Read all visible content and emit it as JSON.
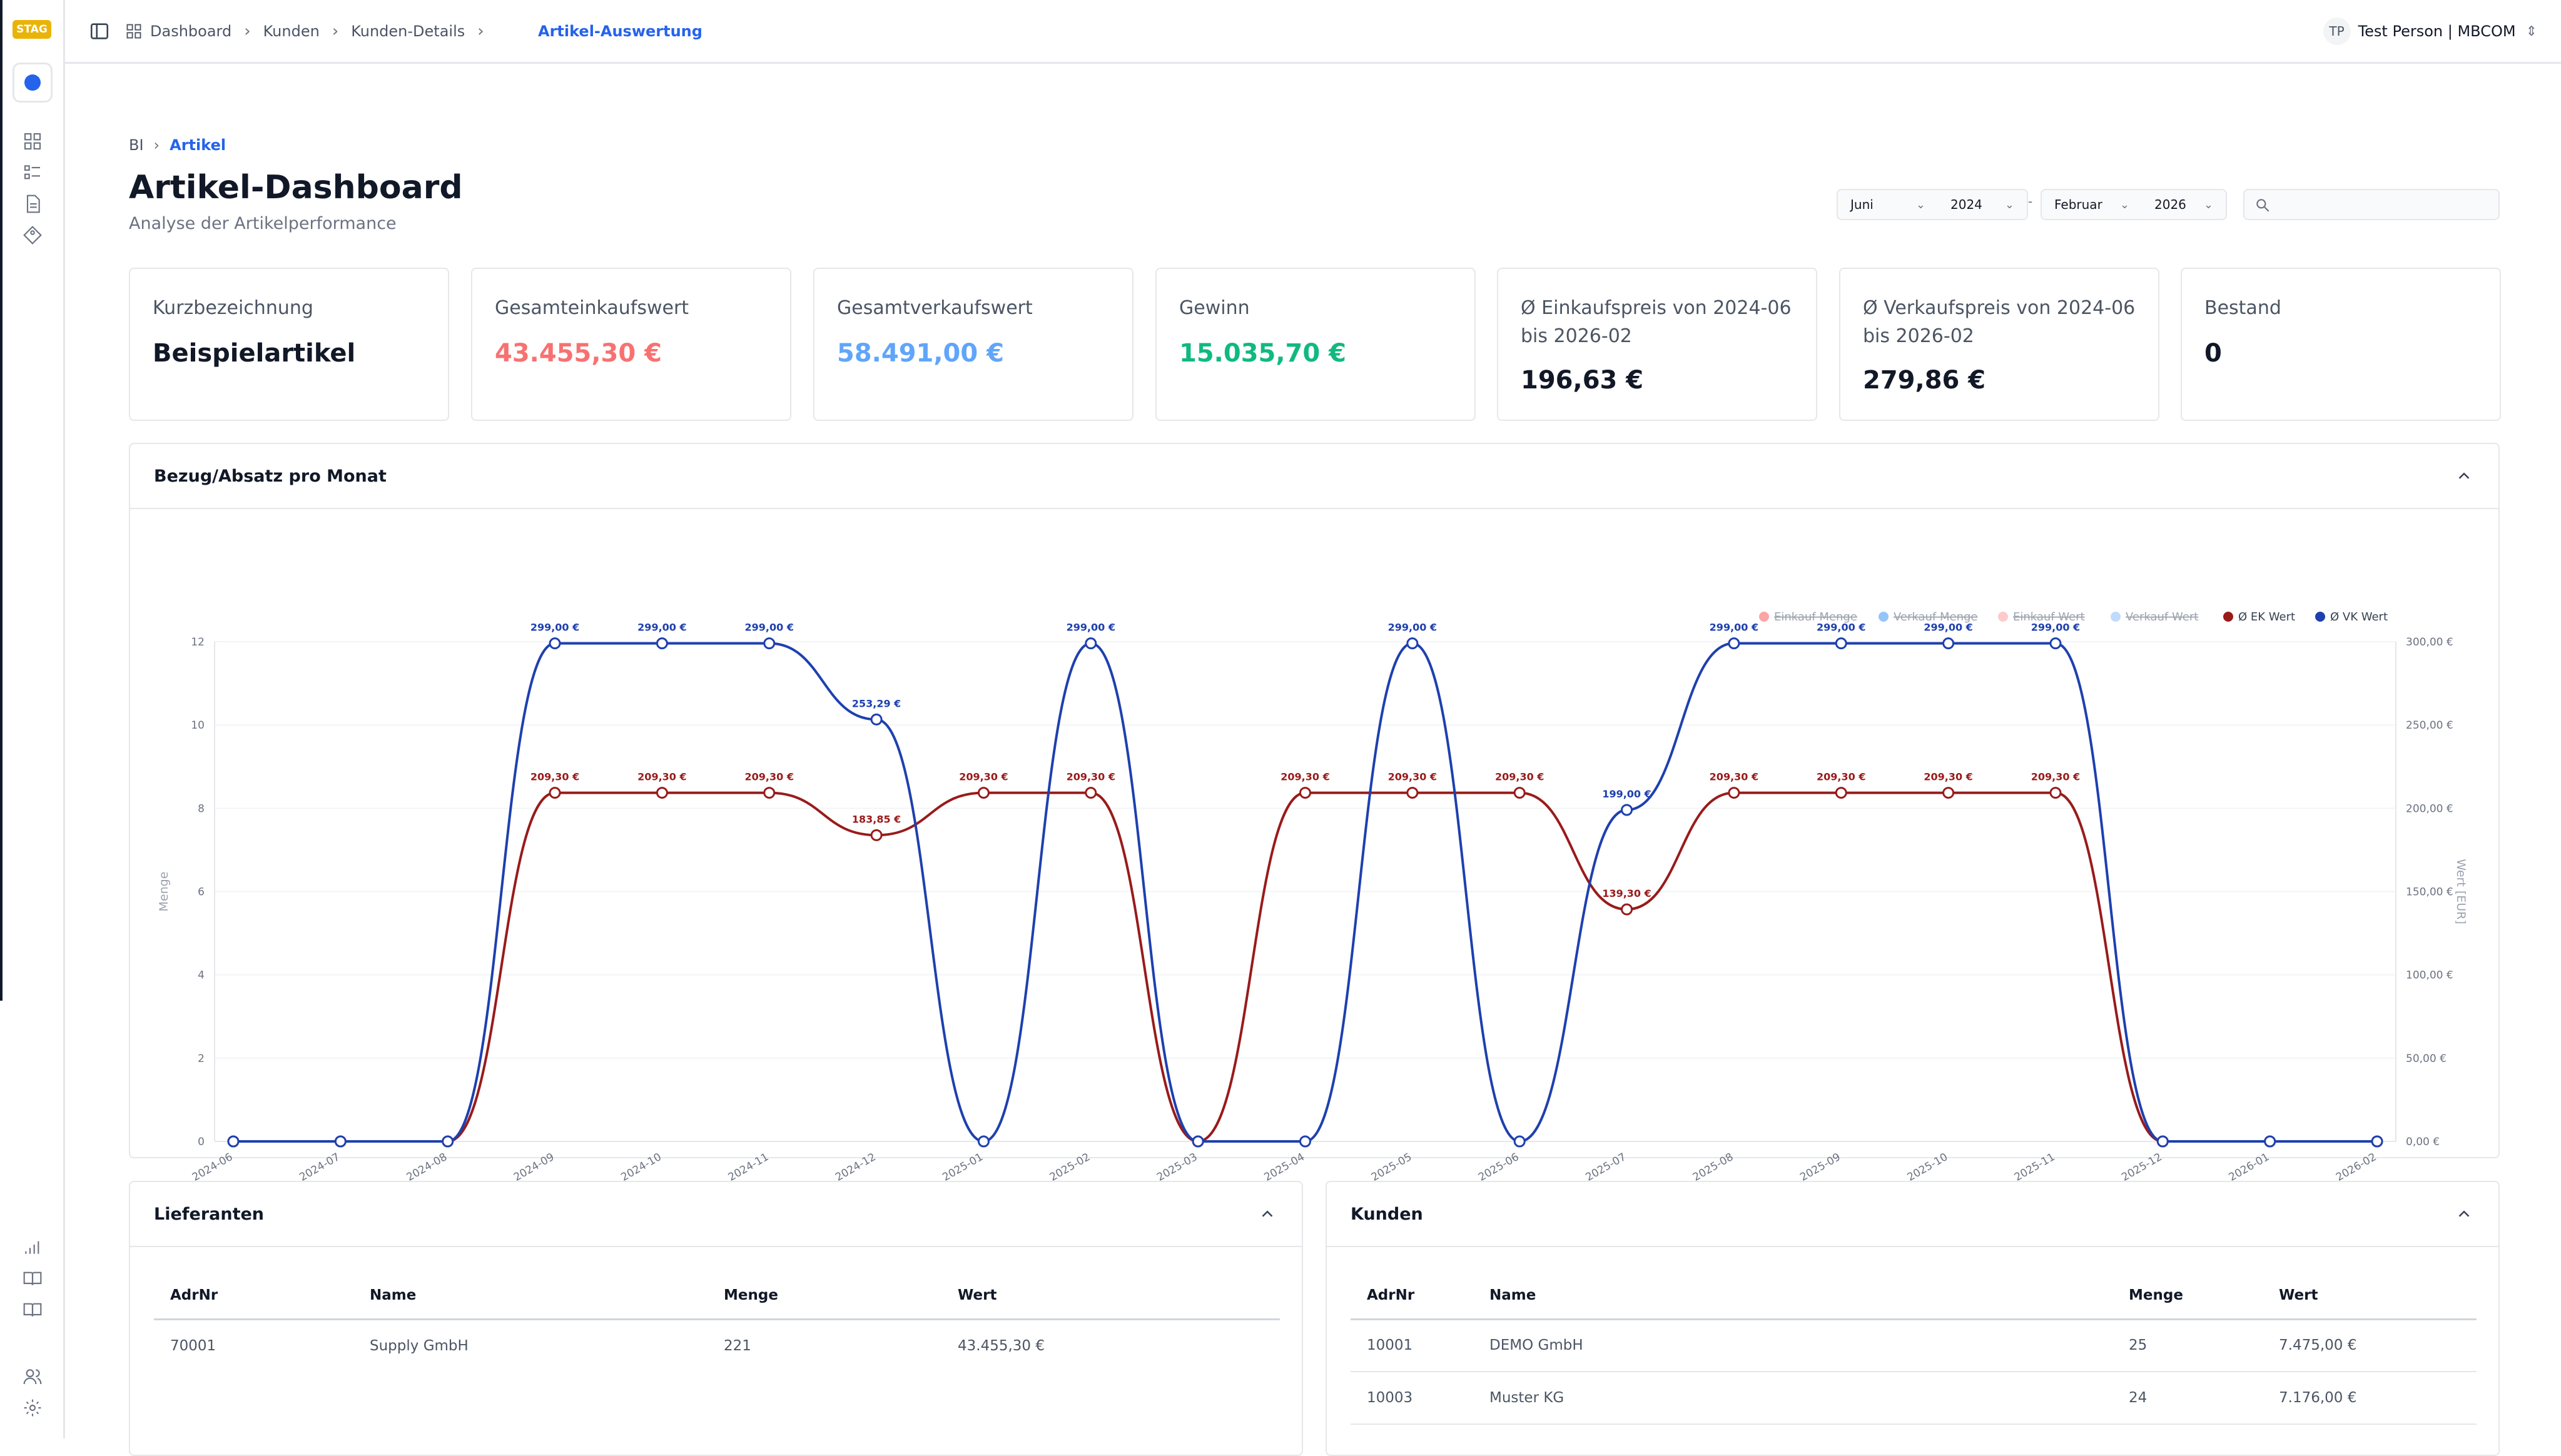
{
  "env_badge": "STAG",
  "topbar": {
    "breadcrumb": [
      "Dashboard",
      "Kunden",
      "Kunden-Details"
    ],
    "active": "Artikel-Auswertung",
    "user_initials": "TP",
    "user_name": "Test Person | MBCOM"
  },
  "page": {
    "crumb_root": "BI",
    "crumb_active": "Artikel",
    "title": "Artikel-Dashboard",
    "subtitle": "Analyse der Artikelperformance"
  },
  "filters": {
    "from_month": "Juni",
    "from_year": "2024",
    "dash": "-",
    "to_month": "Februar",
    "to_year": "2026",
    "search_placeholder": ""
  },
  "kpis": [
    {
      "label": "Kurzbezeichnung",
      "value": "Beispielartikel",
      "color": "#111827"
    },
    {
      "label": "Gesamteinkaufswert",
      "value": "43.455,30 €",
      "color": "#f87171"
    },
    {
      "label": "Gesamtverkaufswert",
      "value": "58.491,00 €",
      "color": "#60a5fa"
    },
    {
      "label": "Gewinn",
      "value": "15.035,70 €",
      "color": "#10b981"
    },
    {
      "label": "Ø Einkaufspreis von 2024-06 bis 2026-02",
      "value": "196,63 €",
      "color": "#111827"
    },
    {
      "label": "Ø Verkaufspreis von 2024-06 bis 2026-02",
      "value": "279,86 €",
      "color": "#111827"
    },
    {
      "label": "Bestand",
      "value": "0",
      "color": "#111827"
    }
  ],
  "chart_panel": {
    "title": "Bezug/Absatz pro Monat"
  },
  "chart_data": {
    "type": "line",
    "categories": [
      "2024-06",
      "2024-07",
      "2024-08",
      "2024-09",
      "2024-10",
      "2024-11",
      "2024-12",
      "2025-01",
      "2025-02",
      "2025-03",
      "2025-04",
      "2025-05",
      "2025-06",
      "2025-07",
      "2025-08",
      "2025-09",
      "2025-10",
      "2025-11",
      "2025-12",
      "2026-01",
      "2026-02"
    ],
    "ylabel": "Menge",
    "y2label": "Wert [EUR]",
    "ylim": [
      0,
      12
    ],
    "y_ticks": [
      "0",
      "2",
      "4",
      "6",
      "8",
      "10",
      "12"
    ],
    "y2lim": [
      0,
      300
    ],
    "y2_ticks": [
      "0,00 €",
      "50,00 €",
      "100,00 €",
      "150,00 €",
      "200,00 €",
      "250,00 €",
      "300,00 €"
    ],
    "legend_position": "top-right",
    "legend": [
      {
        "name": "Einkauf Menge",
        "color": "#fca5a5",
        "hidden": true
      },
      {
        "name": "Verkauf Menge",
        "color": "#93c5fd",
        "hidden": true
      },
      {
        "name": "Einkauf Wert",
        "color": "#fecaca",
        "hidden": true
      },
      {
        "name": "Verkauf Wert",
        "color": "#bfdbfe",
        "hidden": true
      },
      {
        "name": "Ø EK Wert",
        "color": "#991b1b",
        "hidden": false
      },
      {
        "name": "Ø VK Wert",
        "color": "#1e40af",
        "hidden": false
      }
    ],
    "series": [
      {
        "name": "Ø EK Wert",
        "color": "#991b1b",
        "values": [
          0,
          0,
          0,
          209.3,
          209.3,
          209.3,
          183.85,
          209.3,
          209.3,
          0,
          209.3,
          209.3,
          209.3,
          139.3,
          209.3,
          209.3,
          209.3,
          209.3,
          0,
          0,
          0
        ],
        "labels": [
          "",
          "",
          "",
          "209,30 €",
          "209,30 €",
          "209,30 €",
          "183,85 €",
          "209,30 €",
          "209,30 €",
          "",
          "209,30 €",
          "209,30 €",
          "209,30 €",
          "139,30 €",
          "209,30 €",
          "209,30 €",
          "209,30 €",
          "209,30 €",
          "",
          "",
          ""
        ]
      },
      {
        "name": "Ø VK Wert",
        "color": "#1e40af",
        "values": [
          0,
          0,
          0,
          299,
          299,
          299,
          253.29,
          0,
          299,
          0,
          0,
          299,
          0,
          199,
          299,
          299,
          299,
          299,
          0,
          0,
          0
        ],
        "labels": [
          "",
          "",
          "",
          "299,00 €",
          "299,00 €",
          "299,00 €",
          "253,29 €",
          "",
          "299,00 €",
          "",
          "",
          "299,00 €",
          "",
          "199,00 €",
          "299,00 €",
          "299,00 €",
          "299,00 €",
          "299,00 €",
          "",
          "",
          ""
        ]
      }
    ]
  },
  "suppliers": {
    "title": "Lieferanten",
    "columns": [
      "AdrNr",
      "Name",
      "Menge",
      "Wert"
    ],
    "rows": [
      [
        "70001",
        "Supply GmbH",
        "221",
        "43.455,30 €"
      ]
    ]
  },
  "customers": {
    "title": "Kunden",
    "columns": [
      "AdrNr",
      "Name",
      "Menge",
      "Wert"
    ],
    "rows": [
      [
        "10001",
        "DEMO GmbH",
        "25",
        "7.475,00 €"
      ],
      [
        "10003",
        "Muster KG",
        "24",
        "7.176,00 €"
      ]
    ]
  }
}
